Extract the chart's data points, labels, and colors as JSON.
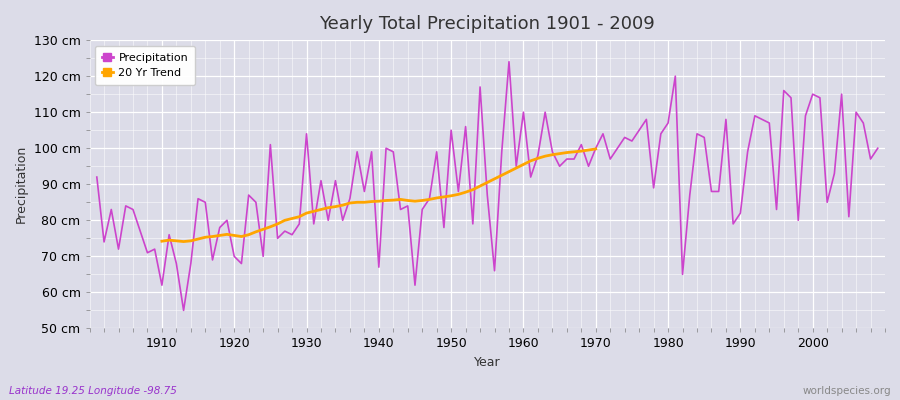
{
  "title": "Yearly Total Precipitation 1901 - 2009",
  "xlabel": "Year",
  "ylabel": "Precipitation",
  "subtitle_left": "Latitude 19.25 Longitude -98.75",
  "subtitle_right": "worldspecies.org",
  "precipitation_color": "#CC44CC",
  "trend_color": "#FFA500",
  "bg_color": "#DCDCE8",
  "ylim": [
    50,
    130
  ],
  "yticks": [
    50,
    60,
    70,
    80,
    90,
    100,
    110,
    120,
    130
  ],
  "xlim": [
    1900,
    2010
  ],
  "years": [
    1901,
    1902,
    1903,
    1904,
    1905,
    1906,
    1907,
    1908,
    1909,
    1910,
    1911,
    1912,
    1913,
    1914,
    1915,
    1916,
    1917,
    1918,
    1919,
    1920,
    1921,
    1922,
    1923,
    1924,
    1925,
    1926,
    1927,
    1928,
    1929,
    1930,
    1931,
    1932,
    1933,
    1934,
    1935,
    1936,
    1937,
    1938,
    1939,
    1940,
    1941,
    1942,
    1943,
    1944,
    1945,
    1946,
    1947,
    1948,
    1949,
    1950,
    1951,
    1952,
    1953,
    1954,
    1955,
    1956,
    1957,
    1958,
    1959,
    1960,
    1961,
    1962,
    1963,
    1964,
    1965,
    1966,
    1967,
    1968,
    1969,
    1970,
    1971,
    1972,
    1973,
    1974,
    1975,
    1976,
    1977,
    1978,
    1979,
    1980,
    1981,
    1982,
    1983,
    1984,
    1985,
    1986,
    1987,
    1988,
    1989,
    1990,
    1991,
    1992,
    1993,
    1994,
    1995,
    1996,
    1997,
    1998,
    1999,
    2000,
    2001,
    2002,
    2003,
    2004,
    2005,
    2006,
    2007,
    2008,
    2009
  ],
  "precipitation": [
    92,
    74,
    83,
    72,
    84,
    83,
    77,
    71,
    72,
    62,
    76,
    68,
    55,
    68,
    86,
    85,
    69,
    78,
    80,
    70,
    68,
    87,
    85,
    70,
    101,
    75,
    77,
    76,
    79,
    104,
    79,
    91,
    80,
    91,
    80,
    86,
    99,
    88,
    99,
    67,
    100,
    99,
    83,
    84,
    62,
    83,
    86,
    99,
    78,
    105,
    88,
    106,
    79,
    117,
    87,
    66,
    99,
    124,
    95,
    110,
    92,
    98,
    110,
    99,
    95,
    97,
    97,
    101,
    95,
    100,
    104,
    97,
    100,
    103,
    102,
    105,
    108,
    89,
    104,
    107,
    120,
    65,
    87,
    104,
    103,
    88,
    88,
    108,
    79,
    82,
    99,
    109,
    108,
    107,
    83,
    116,
    114,
    80,
    109,
    115,
    114,
    85,
    93,
    115,
    81,
    110,
    107,
    97,
    100
  ],
  "trend_years": [
    1910,
    1911,
    1912,
    1913,
    1914,
    1915,
    1916,
    1917,
    1918,
    1919,
    1920,
    1921,
    1922,
    1923,
    1924,
    1925,
    1926,
    1927,
    1928,
    1929,
    1930,
    1931,
    1932,
    1933,
    1934,
    1935,
    1936,
    1937,
    1938,
    1939,
    1940,
    1941,
    1942,
    1943,
    1944,
    1945,
    1946,
    1947,
    1948,
    1949,
    1950,
    1951,
    1952,
    1953,
    1954,
    1955,
    1956,
    1957,
    1958,
    1959,
    1960,
    1961,
    1962,
    1963,
    1964,
    1965,
    1966,
    1967,
    1968,
    1969,
    1970
  ],
  "trend_values": [
    74.2,
    74.5,
    74.3,
    74.1,
    74.3,
    74.8,
    75.3,
    75.5,
    75.8,
    76.1,
    75.8,
    75.5,
    76.0,
    76.8,
    77.5,
    78.2,
    79.0,
    80.0,
    80.5,
    81.0,
    82.0,
    82.5,
    83.0,
    83.5,
    83.8,
    84.2,
    84.8,
    85.0,
    85.0,
    85.2,
    85.3,
    85.5,
    85.6,
    85.8,
    85.5,
    85.3,
    85.5,
    85.8,
    86.2,
    86.5,
    86.8,
    87.2,
    87.8,
    88.5,
    89.5,
    90.5,
    91.5,
    92.5,
    93.5,
    94.5,
    95.5,
    96.5,
    97.2,
    97.8,
    98.2,
    98.5,
    98.8,
    99.0,
    99.2,
    99.5,
    99.8
  ]
}
